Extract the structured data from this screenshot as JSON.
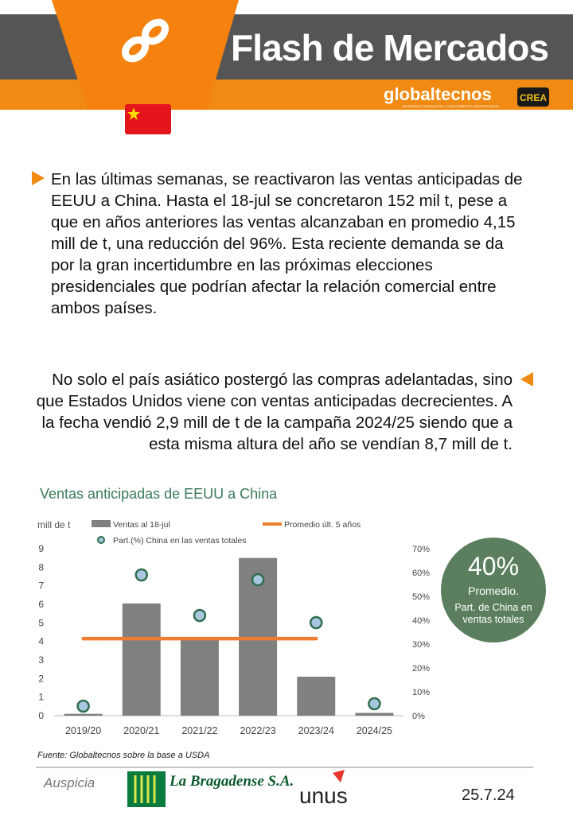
{
  "header": {
    "title": "Flash de Mercados",
    "brand": "globaltecnos",
    "brand_tagline": "GENERANDO INNOVACIÓN Y CONOCIMIENTO AGROPECUARIO",
    "partner": "CREA"
  },
  "paragraphs": [
    "En las últimas semanas, se reactivaron las ventas anticipadas de EEUU a China. Hasta el 18-jul se concretaron 152 mil t, pese a que en años anteriores las ventas alcanzaban en promedio 4,15 mill de t, una reducción del 96%. Esta reciente demanda se da por la gran incertidumbre en las próximas elecciones presidenciales que podrían afectar la relación comercial entre ambos países.",
    "No solo el país asiático postergó las compras adelantadas, sino que Estados Unidos viene con ventas anticipadas decrecientes. A la fecha vendió 2,9 mill de t de la campaña 2024/25 siendo que a esta misma altura del año se vendían 8,7 mill de t."
  ],
  "chart_data": {
    "type": "bar",
    "title": "Ventas anticipadas de EEUU a China",
    "y_label": "mill de t",
    "categories": [
      "2019/20",
      "2020/21",
      "2021/22",
      "2022/23",
      "2023/24",
      "2024/25"
    ],
    "series": [
      {
        "name": "Ventas al  18-jul",
        "type": "bar",
        "color": "#808080",
        "values": [
          0.1,
          6.05,
          4.1,
          8.5,
          2.1,
          0.15
        ]
      },
      {
        "name": "Promedio últ. 5 años",
        "type": "line",
        "color": "#ed7d31",
        "values": [
          4.15,
          4.15,
          4.15,
          4.15,
          4.15,
          null
        ]
      },
      {
        "name": "Part.(%) China en las ventas totales",
        "type": "scatter",
        "axis": "y2",
        "color": "#a9c6e0",
        "values": [
          4,
          59,
          42,
          57,
          39,
          5
        ]
      }
    ],
    "ylim": [
      0,
      9
    ],
    "yticks": [
      0,
      1,
      2,
      3,
      4,
      5,
      6,
      7,
      8,
      9
    ],
    "y2lim": [
      0,
      70
    ],
    "y2ticks": [
      {
        "value": 0,
        "label": "0%"
      },
      {
        "value": 10,
        "label": "10%"
      },
      {
        "value": 20,
        "label": "20%"
      },
      {
        "value": 30,
        "label": "30%"
      },
      {
        "value": 40,
        "label": "40%"
      },
      {
        "value": 50,
        "label": "50%"
      },
      {
        "value": 60,
        "label": "60%"
      },
      {
        "value": 70,
        "label": "70%"
      }
    ],
    "callout": {
      "value": "40%",
      "line1": "Promedio.",
      "line2": "Part. de China en ventas totales"
    },
    "source": "Fuente: Globaltecnos sobre la base a USDA"
  },
  "footer": {
    "sponsor_label": "Auspicia",
    "sponsor1": "La Bragadense S.A.",
    "sponsor2": "unus",
    "date": "25.7.24"
  }
}
